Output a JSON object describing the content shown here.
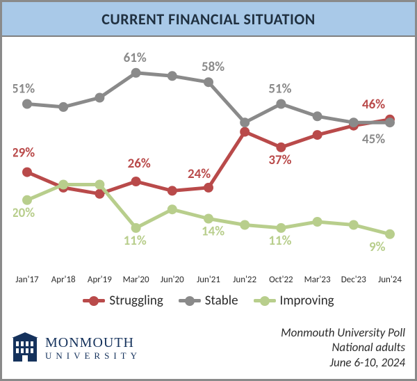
{
  "header": {
    "title": "CURRENT FINANCIAL SITUATION",
    "bg_color": "#a9c9e8",
    "title_color": "#203040"
  },
  "chart": {
    "type": "line",
    "y_min": 0,
    "y_max": 65,
    "line_width": 5,
    "marker_radius": 7,
    "categories": [
      "Jan'17",
      "Apr'18",
      "Apr'19",
      "Mar'20",
      "Jun'20",
      "Jun'21",
      "Jun'22",
      "Oct'22",
      "Mar'23",
      "Dec'23",
      "Jun'24"
    ],
    "series": [
      {
        "key": "struggling",
        "name": "Struggling",
        "color": "#b94a4a",
        "values": [
          29,
          24,
          22,
          26,
          23,
          24,
          42,
          37,
          41,
          44,
          46
        ],
        "labels": [
          {
            "i": 0,
            "text": "29%",
            "dx": -22,
            "dy": -22,
            "fontsize": 19
          },
          {
            "i": 3,
            "text": "26%",
            "dx": -12,
            "dy": -20,
            "fontsize": 19
          },
          {
            "i": 5,
            "text": "24%",
            "dx": -30,
            "dy": -14,
            "fontsize": 19
          },
          {
            "i": 7,
            "text": "37%",
            "dx": -18,
            "dy": 24,
            "fontsize": 19
          },
          {
            "i": 10,
            "text": "46%",
            "dx": -40,
            "dy": -16,
            "fontsize": 19
          }
        ]
      },
      {
        "key": "stable",
        "name": "Stable",
        "color": "#8a8a8a",
        "values": [
          51,
          50,
          53,
          61,
          60,
          58,
          45,
          51,
          47,
          45,
          45
        ],
        "labels": [
          {
            "i": 0,
            "text": "51%",
            "dx": -22,
            "dy": -16,
            "fontsize": 19
          },
          {
            "i": 3,
            "text": "61%",
            "dx": -18,
            "dy": -16,
            "fontsize": 19
          },
          {
            "i": 5,
            "text": "58%",
            "dx": -10,
            "dy": -16,
            "fontsize": 19
          },
          {
            "i": 7,
            "text": "51%",
            "dx": -18,
            "dy": -16,
            "fontsize": 19
          },
          {
            "i": 10,
            "text": "45%",
            "dx": -40,
            "dy": 30,
            "fontsize": 19
          }
        ]
      },
      {
        "key": "improving",
        "name": "Improving",
        "color": "#b8ce8c",
        "values": [
          20,
          25,
          25,
          11,
          17,
          14,
          12,
          11,
          13,
          12,
          9
        ],
        "labels": [
          {
            "i": 0,
            "text": "20%",
            "dx": -22,
            "dy": 24,
            "fontsize": 19
          },
          {
            "i": 3,
            "text": "11%",
            "dx": -18,
            "dy": 24,
            "fontsize": 19
          },
          {
            "i": 5,
            "text": "14%",
            "dx": -10,
            "dy": 24,
            "fontsize": 19
          },
          {
            "i": 7,
            "text": "11%",
            "dx": -18,
            "dy": 24,
            "fontsize": 19
          },
          {
            "i": 10,
            "text": "9%",
            "dx": -30,
            "dy": 24,
            "fontsize": 19
          }
        ]
      }
    ],
    "legend_order": [
      "struggling",
      "stable",
      "improving"
    ]
  },
  "footer": {
    "logo_main": "MONMOUTH",
    "logo_sub": "UNIVERSITY",
    "logo_color": "#15325c",
    "poll_line1": "Monmouth University Poll",
    "poll_line2": "National adults",
    "poll_line3": "June 6-10, 2024"
  }
}
